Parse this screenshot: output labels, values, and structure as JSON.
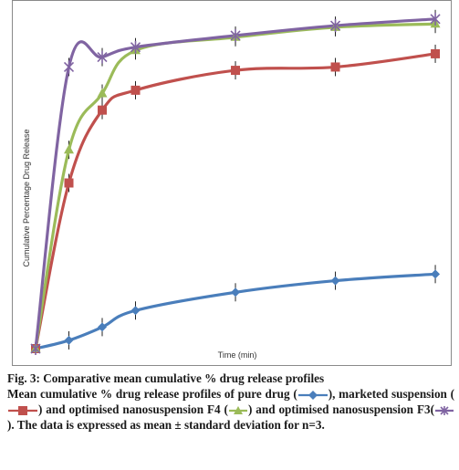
{
  "chart_data": {
    "type": "line",
    "title": "",
    "xlabel": "Time (min)",
    "ylabel": "Cumulative Percentage Drug Release",
    "x": [
      0,
      1,
      2,
      3,
      6,
      9,
      12
    ],
    "ylim": [
      0,
      100
    ],
    "xlim": [
      0,
      12.3
    ],
    "grid": false,
    "series": [
      {
        "name": "pure drug",
        "color": "#4a7ebb",
        "marker": "diamond",
        "values": [
          0,
          2.5,
          6.5,
          11.5,
          17,
          20.5,
          22.5
        ]
      },
      {
        "name": "marketed suspension",
        "color": "#c0504d",
        "marker": "square",
        "values": [
          0,
          50,
          72,
          78,
          84,
          85,
          89
        ]
      },
      {
        "name": "optimised nanosuspension F4",
        "color": "#9bbb59",
        "marker": "triangle",
        "values": [
          0,
          60,
          77,
          90,
          94,
          97,
          98
        ]
      },
      {
        "name": "optimised nanosuspension F3",
        "color": "#8064a2",
        "marker": "star",
        "values": [
          0,
          85,
          88,
          91,
          94.5,
          97.5,
          99.5
        ]
      }
    ]
  },
  "caption": {
    "title": "Fig. 3: Comparative mean cumulative % drug release profiles",
    "text_1": "Mean cumulative % drug release profiles of pure drug (",
    "text_2": "), marketed suspension (",
    "text_3": ") and optimised nanosuspension F4 (",
    "text_4": ") and optimised nanosuspension F3(",
    "text_5": "). The data is expressed as mean ± standard deviation for n=3."
  }
}
